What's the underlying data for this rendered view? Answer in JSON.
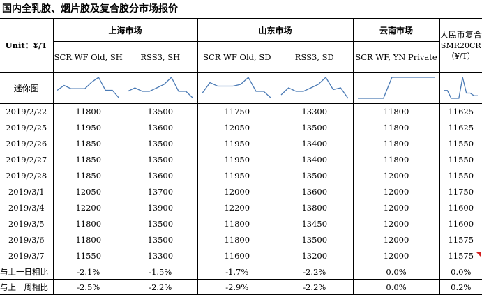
{
  "title": "国内全乳胶、烟片胶及复合胶分市场报价",
  "header": {
    "unit": "Unit：¥/T",
    "groups": {
      "shanghai": "上海市场",
      "shandong": "山东市场",
      "yunnan": "云南市场",
      "rmb_line1": "人民币复合",
      "rmb_line2": "SMR20CR（¥/T）"
    },
    "columns": {
      "sh_scr": "SCR WF Old, SH",
      "sh_rss": "RSS3, SH",
      "sd_scr": "SCR WF Old, SD",
      "sd_rss": "RSS3, SD",
      "yn_scr": "SCR WF, YN Private"
    },
    "mini_label": "迷你图"
  },
  "rows": [
    {
      "date": "2019/2/22",
      "sh_scr": "11800",
      "sh_rss": "13500",
      "sd_scr": "11750",
      "sd_rss": "13300",
      "yn_scr": "11800",
      "rmb": "11625"
    },
    {
      "date": "2019/2/25",
      "sh_scr": "11950",
      "sh_rss": "13600",
      "sd_scr": "12050",
      "sd_rss": "13500",
      "yn_scr": "11800",
      "rmb": "11625"
    },
    {
      "date": "2019/2/26",
      "sh_scr": "11850",
      "sh_rss": "13500",
      "sd_scr": "11950",
      "sd_rss": "13400",
      "yn_scr": "11800",
      "rmb": "11550"
    },
    {
      "date": "2019/2/27",
      "sh_scr": "11850",
      "sh_rss": "13500",
      "sd_scr": "11950",
      "sd_rss": "13400",
      "yn_scr": "11800",
      "rmb": "11550"
    },
    {
      "date": "2019/2/28",
      "sh_scr": "11850",
      "sh_rss": "13600",
      "sd_scr": "11950",
      "sd_rss": "13500",
      "yn_scr": "12000",
      "rmb": "11550"
    },
    {
      "date": "2019/3/1",
      "sh_scr": "12050",
      "sh_rss": "13700",
      "sd_scr": "12000",
      "sd_rss": "13600",
      "yn_scr": "12000",
      "rmb": "11750"
    },
    {
      "date": "2019/3/4",
      "sh_scr": "12200",
      "sh_rss": "13900",
      "sd_scr": "12200",
      "sd_rss": "13800",
      "yn_scr": "12000",
      "rmb": "11600"
    },
    {
      "date": "2019/3/5",
      "sh_scr": "11800",
      "sh_rss": "13500",
      "sd_scr": "11800",
      "sd_rss": "13450",
      "yn_scr": "12000",
      "rmb": "11600"
    },
    {
      "date": "2019/3/6",
      "sh_scr": "11800",
      "sh_rss": "13500",
      "sd_scr": "11800",
      "sd_rss": "13500",
      "yn_scr": "12000",
      "rmb": "11575"
    },
    {
      "date": "2019/3/7",
      "sh_scr": "11550",
      "sh_rss": "13300",
      "sd_scr": "11600",
      "sd_rss": "13200",
      "yn_scr": "12000",
      "rmb": "11575"
    }
  ],
  "summary": [
    {
      "label": "与上一日相比",
      "sh_scr": "-2.1%",
      "sh_rss": "-1.5%",
      "sd_scr": "-1.7%",
      "sd_rss": "-2.2%",
      "yn_scr": "0.0%",
      "rmb": "0.0%"
    },
    {
      "label": "与上一周相比",
      "sh_scr": "-2.5%",
      "sh_rss": "-2.2%",
      "sd_scr": "-2.9%",
      "sd_rss": "-2.2%",
      "yn_scr": "0.0%",
      "rmb": "0.2%"
    }
  ],
  "colors": {
    "sparkline": "#4a7ab5",
    "comment_flag": "#d32020"
  }
}
